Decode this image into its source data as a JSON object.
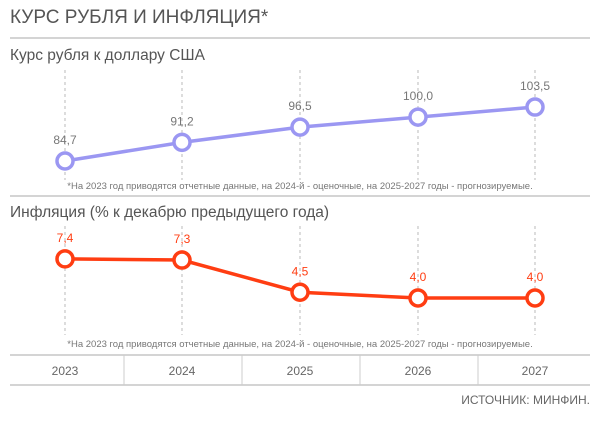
{
  "header": {
    "title": "КУРС РУБЛЯ И ИНФЛЯЦИЯ*"
  },
  "footnote": "*На 2023 год приводятся отчетные данные, на 2024-й - оценочные, на 2025-2027 годы - прогнозируемые.",
  "source": "ИСТОЧНИК: МИНФИН.",
  "chart_data": [
    {
      "type": "line",
      "title": "Курс рубля к доллару США",
      "categories": [
        "2023",
        "2024",
        "2025",
        "2026",
        "2027"
      ],
      "values": [
        84.7,
        91.2,
        96.5,
        100.0,
        103.5
      ],
      "labels": [
        "84,7",
        "91,2",
        "96,5",
        "100,0",
        "103,5"
      ],
      "color": "#9b97f2",
      "label_color": "#777777",
      "grid": "vertical dashed"
    },
    {
      "type": "line",
      "title": "Инфляция (% к декабрю предыдущего года)",
      "categories": [
        "2023",
        "2024",
        "2025",
        "2026",
        "2027"
      ],
      "values": [
        7.4,
        7.3,
        4.5,
        4.0,
        4.0
      ],
      "labels": [
        "7,4",
        "7,3",
        "4,5",
        "4,0",
        "4,0"
      ],
      "color": "#ff3d12",
      "label_color": "#ff3d12",
      "grid": "vertical dashed"
    }
  ]
}
